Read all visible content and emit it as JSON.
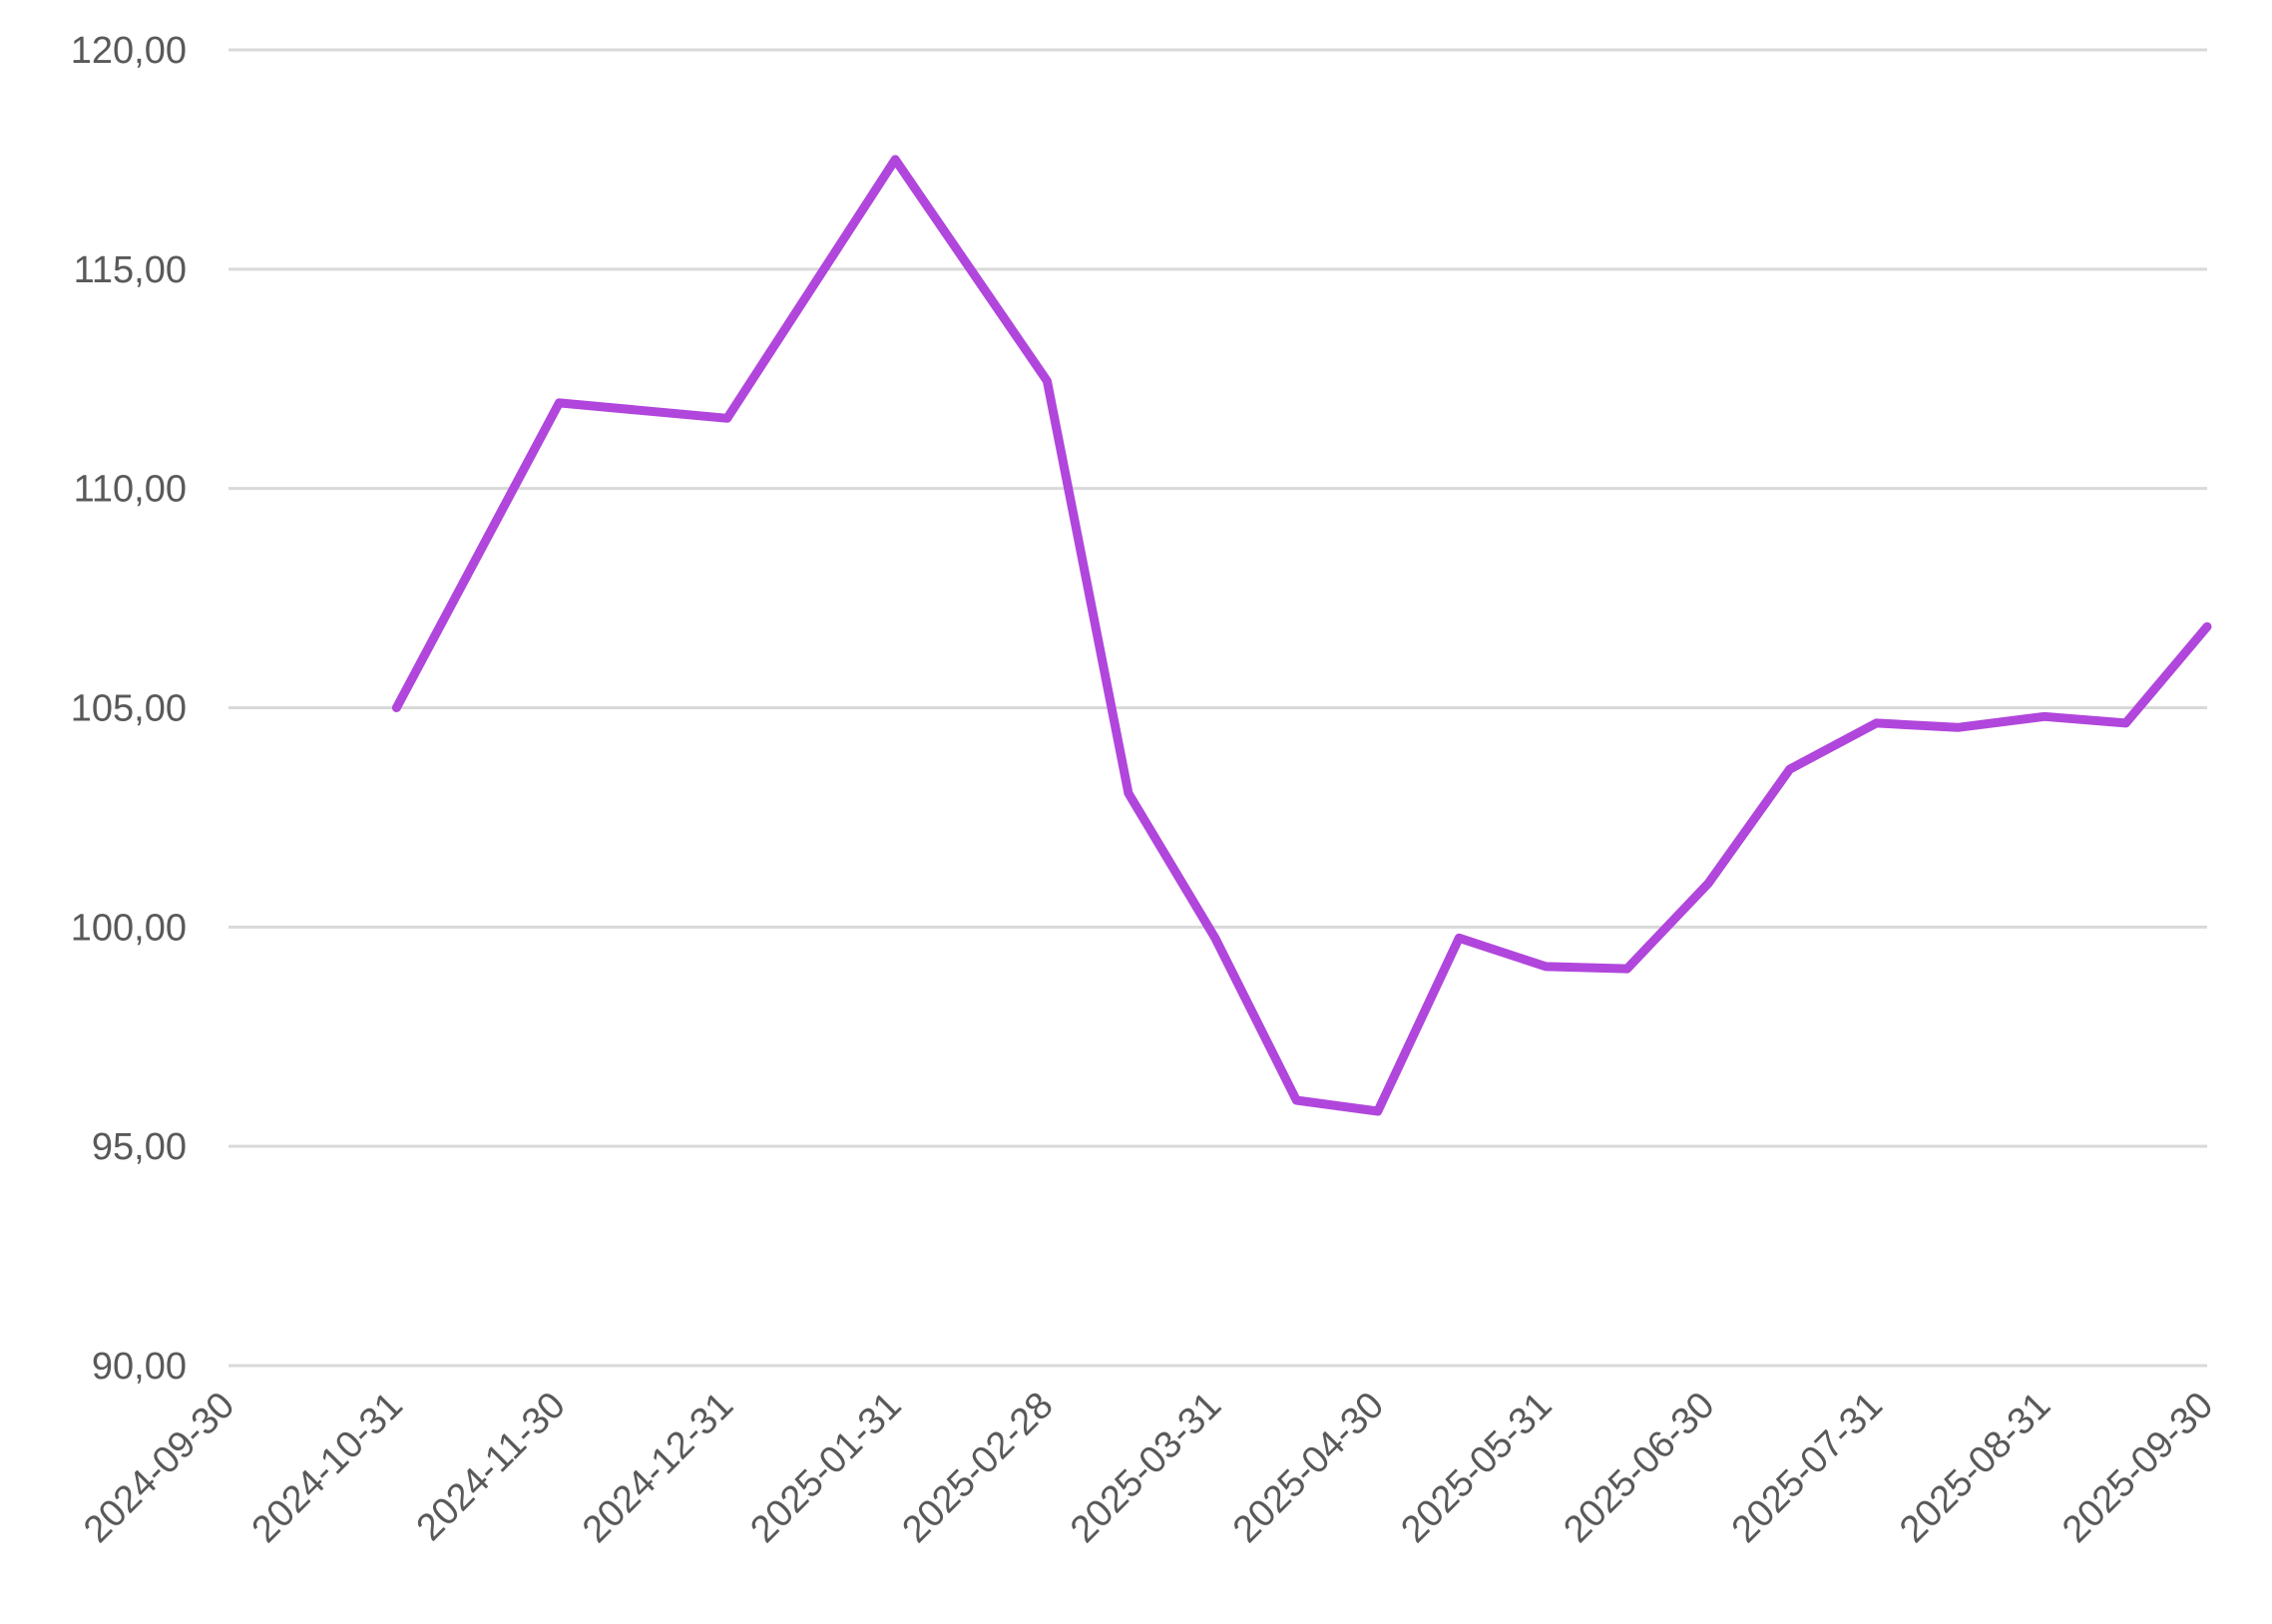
{
  "chart_data": {
    "type": "line",
    "title": "",
    "xlabel": "",
    "ylabel": "",
    "ylim": [
      90,
      120
    ],
    "y_ticks": [
      "90,00",
      "95,00",
      "100,00",
      "105,00",
      "110,00",
      "115,00",
      "120,00"
    ],
    "y_tick_values": [
      90,
      95,
      100,
      105,
      110,
      115,
      120
    ],
    "x_ticks": [
      "2024-09-30",
      "2024-10-31",
      "2024-11-30",
      "2024-12-31",
      "2025-01-31",
      "2025-02-28",
      "2025-03-31",
      "2025-04-30",
      "2025-05-31",
      "2025-06-30",
      "2025-07-31",
      "2025-08-31",
      "2025-09-30"
    ],
    "grid": true,
    "legend": "none",
    "series": [
      {
        "color": "#b146dc",
        "points": [
          {
            "x": "2024-10-31",
            "y": 105.0
          },
          {
            "x": "2024-11-30",
            "y": 111.95
          },
          {
            "x": "2024-12-31",
            "y": 111.6
          },
          {
            "x": "2025-01-31",
            "y": 117.5
          },
          {
            "x": "2025-02-28",
            "y": 112.45
          },
          {
            "x": "2025-03-15",
            "y": 103.05
          },
          {
            "x": "2025-03-31",
            "y": 99.75
          },
          {
            "x": "2025-04-15",
            "y": 96.05
          },
          {
            "x": "2025-04-30",
            "y": 95.8
          },
          {
            "x": "2025-05-15",
            "y": 99.75
          },
          {
            "x": "2025-05-31",
            "y": 99.1
          },
          {
            "x": "2025-06-15",
            "y": 99.05
          },
          {
            "x": "2025-06-30",
            "y": 101.0
          },
          {
            "x": "2025-07-15",
            "y": 103.6
          },
          {
            "x": "2025-07-31",
            "y": 104.65
          },
          {
            "x": "2025-08-15",
            "y": 104.55
          },
          {
            "x": "2025-08-31",
            "y": 104.8
          },
          {
            "x": "2025-09-15",
            "y": 104.65
          },
          {
            "x": "2025-09-30",
            "y": 106.85
          }
        ]
      }
    ]
  }
}
